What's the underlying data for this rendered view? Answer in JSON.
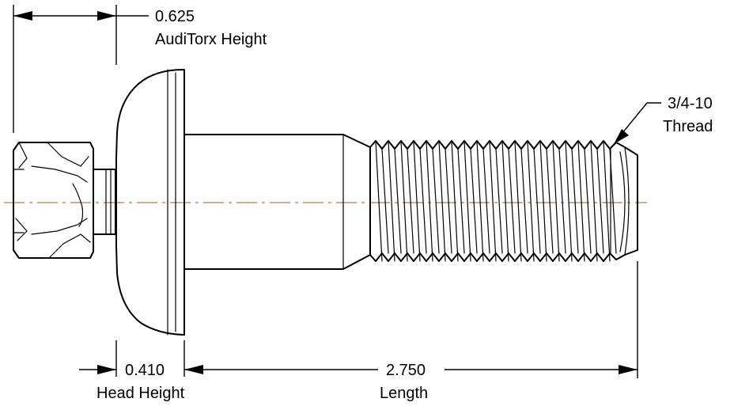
{
  "dimensions": {
    "auditorx_height": {
      "value": "0.625",
      "label": "AudiTorx Height"
    },
    "head_height": {
      "value": "0.410",
      "label": "Head Height"
    },
    "length": {
      "value": "2.750",
      "label": "Length"
    },
    "thread": {
      "value": "3/4-10",
      "label": "Thread"
    }
  },
  "colors": {
    "line": "#000000",
    "centerline": "#b07a3e",
    "background": "#ffffff"
  }
}
